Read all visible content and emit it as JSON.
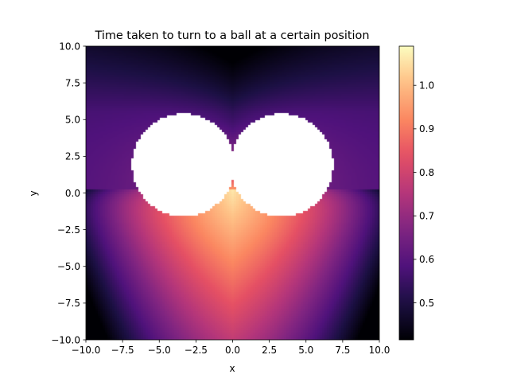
{
  "chart_data": {
    "type": "heatmap",
    "title": "Time taken to turn to a ball at a certain position",
    "xlabel": "x",
    "ylabel": "y",
    "xlim": [
      -10.0,
      10.0
    ],
    "ylim": [
      -10.0,
      10.0
    ],
    "x_ticks": [
      -10.0,
      -7.5,
      -5.0,
      -2.5,
      0.0,
      2.5,
      5.0,
      7.5,
      10.0
    ],
    "y_ticks": [
      -10.0,
      -7.5,
      -5.0,
      -2.5,
      0.0,
      2.5,
      5.0,
      7.5,
      10.0
    ],
    "x_tick_labels": [
      "−10.0",
      "−7.5",
      "−5.0",
      "−2.5",
      "0.0",
      "2.5",
      "5.0",
      "7.5",
      "10.0"
    ],
    "y_tick_labels": [
      "−10.0",
      "−7.5",
      "−5.0",
      "−2.5",
      "0.0",
      "2.5",
      "5.0",
      "7.5",
      "10.0"
    ],
    "colormap": "magma",
    "colorbar": {
      "min": 0.415,
      "max": 1.09,
      "ticks": [
        0.5,
        0.6,
        0.7,
        0.8,
        0.9,
        1.0
      ],
      "tick_labels": [
        "0.5",
        "0.6",
        "0.7",
        "0.8",
        "0.9",
        "1.0"
      ]
    },
    "blank_regions": [
      {
        "shape": "circle",
        "center": [
          -3.35,
          1.9
        ],
        "radius": 3.5
      },
      {
        "shape": "circle",
        "center": [
          3.35,
          1.9
        ],
        "radius": 3.5
      }
    ],
    "grid": false
  }
}
